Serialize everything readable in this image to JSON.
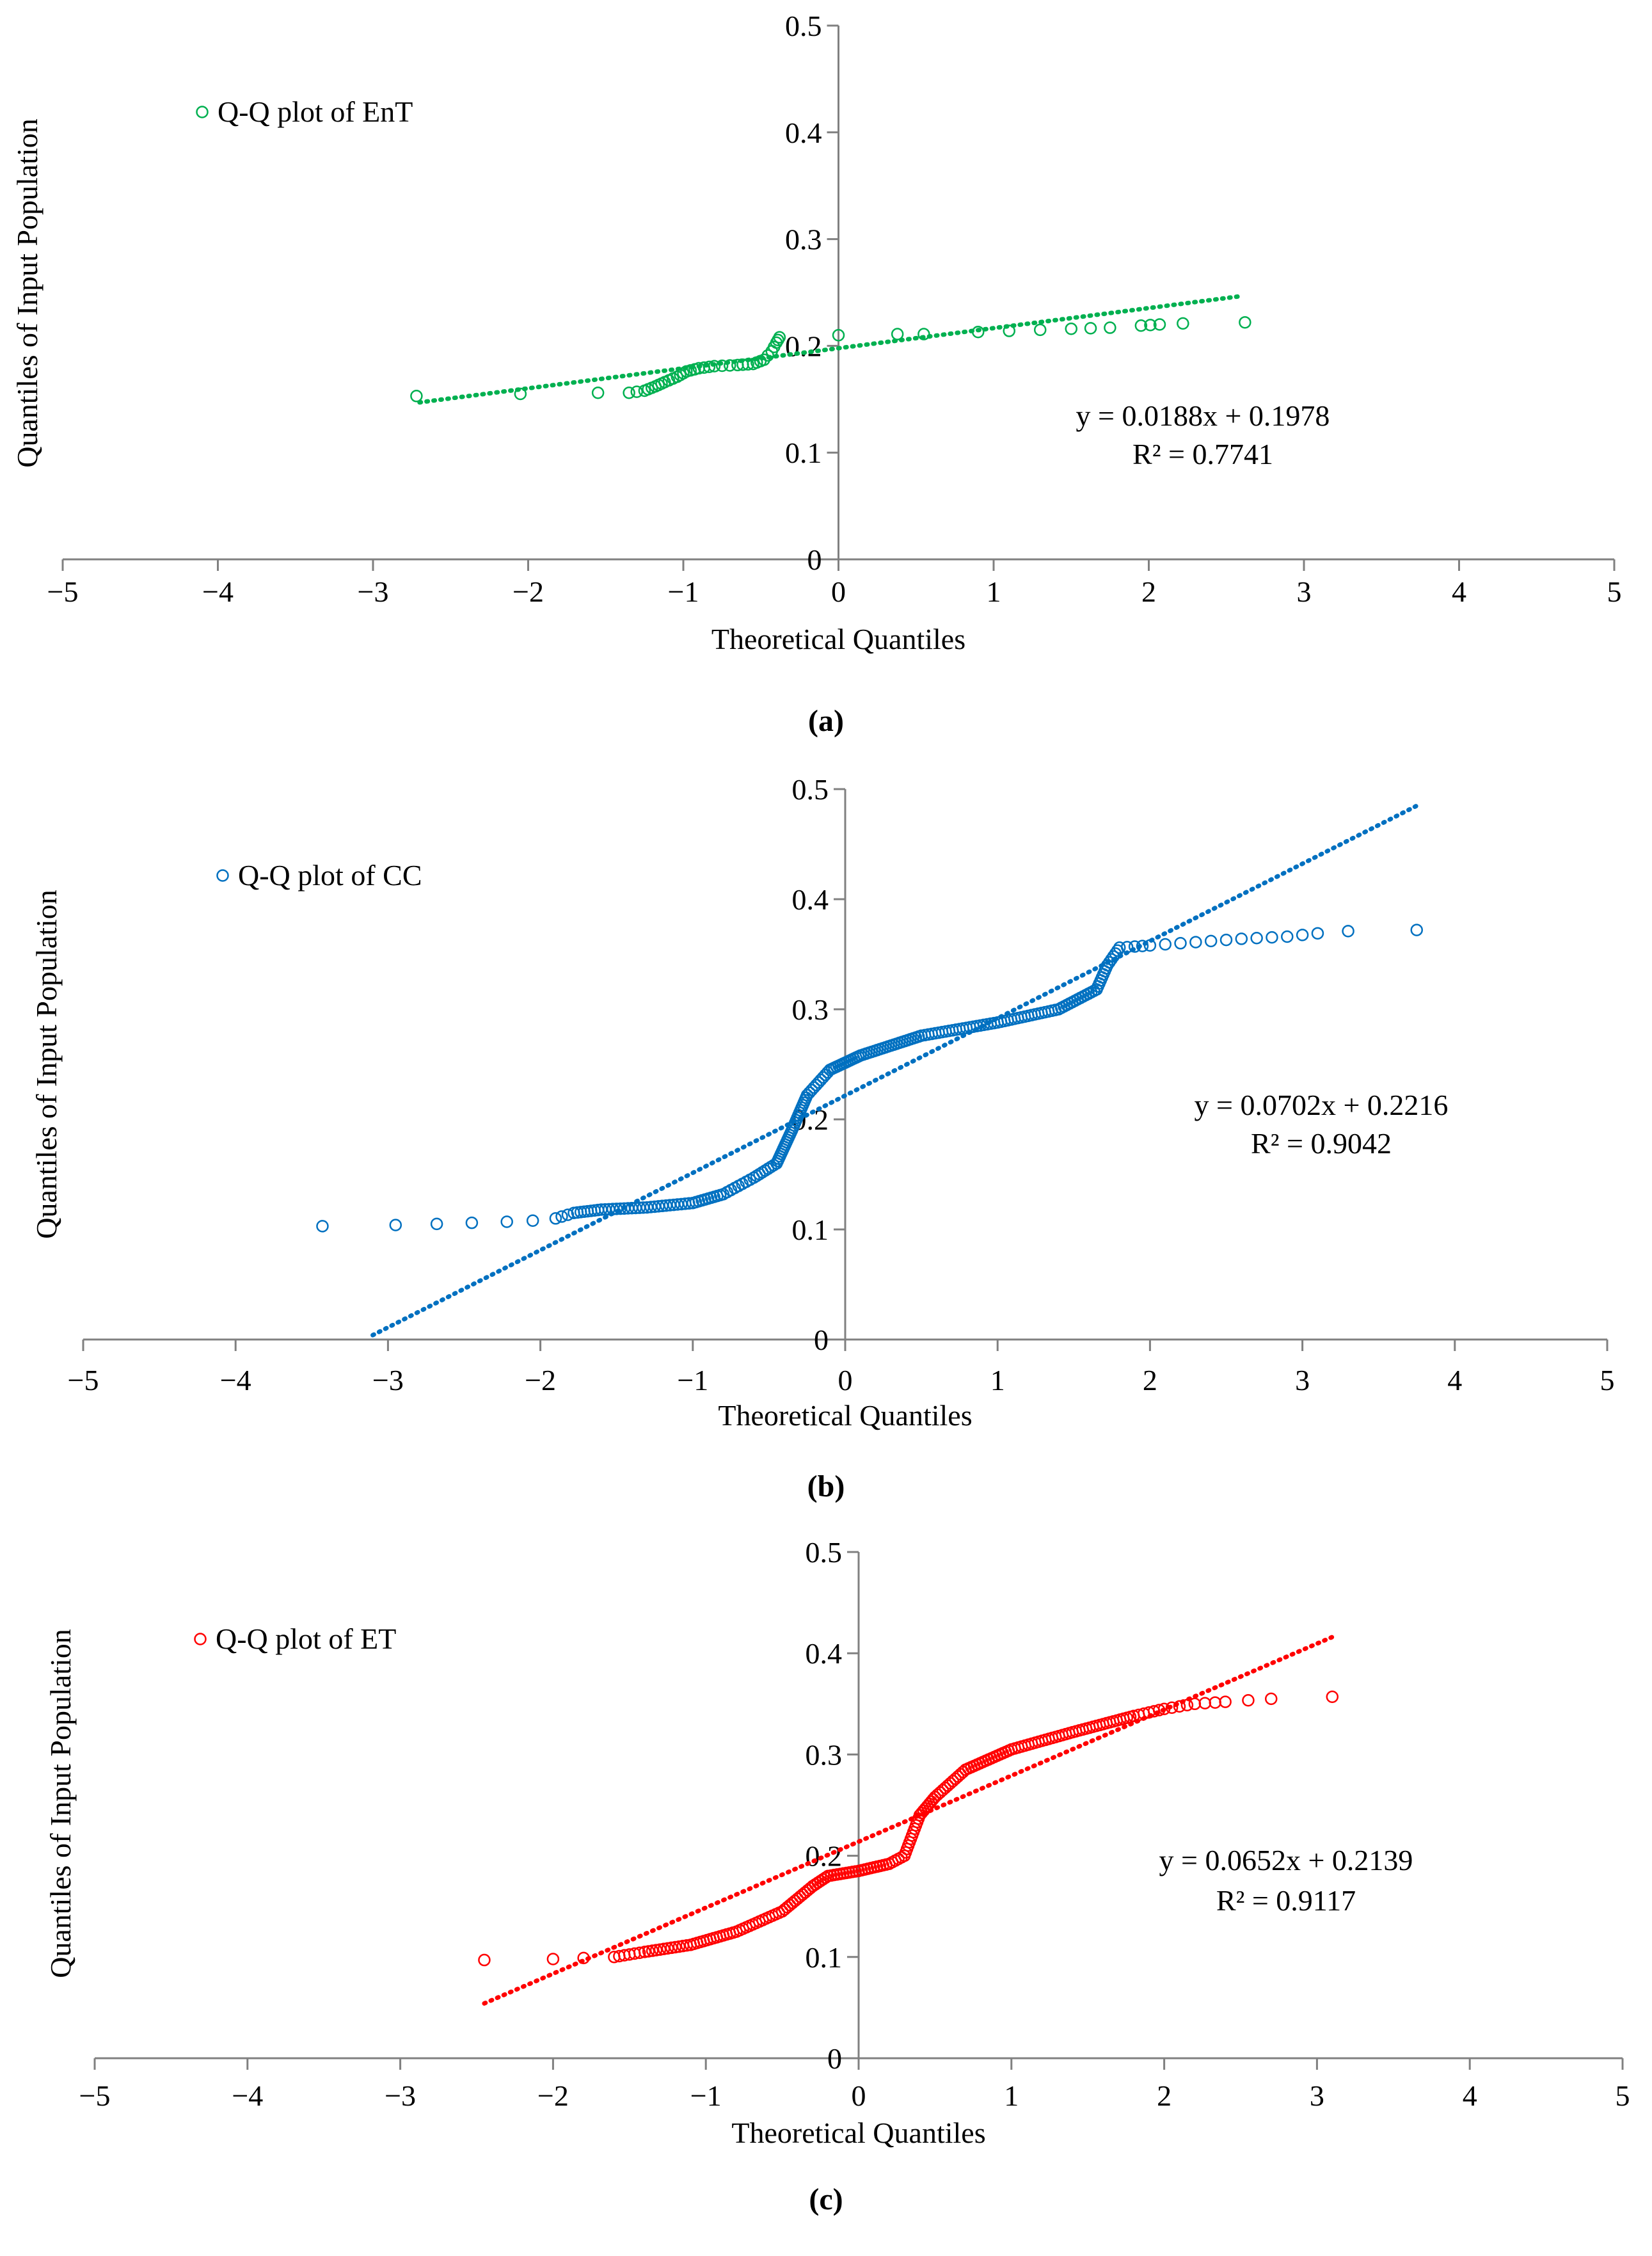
{
  "chart_data": [
    {
      "type": "scatter",
      "panel_label": "(a)",
      "legend": "Q-Q plot of EnT",
      "color": "#00B050",
      "xlabel": "Theoretical Quantiles",
      "ylabel": "Quantiles of Input Population",
      "xlim": [
        -5,
        5
      ],
      "ylim": [
        0,
        0.5
      ],
      "xticks": [
        "−5",
        "−4",
        "−3",
        "−2",
        "−1",
        "0",
        "1",
        "2",
        "3",
        "4",
        "5"
      ],
      "yticks": [
        "0",
        "0.1",
        "0.2",
        "0.3",
        "0.4",
        "0.5"
      ],
      "trendline": {
        "slope": 0.0188,
        "intercept": 0.1978,
        "x_range": [
          -2.7,
          2.6
        ]
      },
      "equation": "y = 0.0188x + 0.1978",
      "r2": "R² = 0.7741",
      "knots": [
        [
          -2.72,
          0.153
        ],
        [
          -2.05,
          0.155
        ],
        [
          -1.55,
          0.156
        ],
        [
          -1.35,
          0.156
        ],
        [
          -1.25,
          0.158
        ],
        [
          -1.18,
          0.162
        ],
        [
          -1.12,
          0.166
        ],
        [
          -1.04,
          0.171
        ],
        [
          -0.98,
          0.176
        ],
        [
          -0.9,
          0.179
        ],
        [
          -0.8,
          0.181
        ],
        [
          -0.65,
          0.182
        ],
        [
          -0.55,
          0.183
        ],
        [
          -0.48,
          0.187
        ],
        [
          -0.43,
          0.195
        ],
        [
          -0.4,
          0.203
        ],
        [
          -0.38,
          0.208
        ],
        [
          0.0,
          0.21
        ],
        [
          0.38,
          0.211
        ],
        [
          0.55,
          0.211
        ],
        [
          0.9,
          0.213
        ],
        [
          1.1,
          0.214
        ],
        [
          1.3,
          0.215
        ],
        [
          1.5,
          0.216
        ],
        [
          1.75,
          0.217
        ],
        [
          1.95,
          0.219
        ],
        [
          2.07,
          0.22
        ],
        [
          2.22,
          0.221
        ],
        [
          2.62,
          0.222
        ]
      ],
      "points_per_segment": [
        1,
        1,
        1,
        2,
        3,
        3,
        3,
        3,
        3,
        3,
        3,
        3,
        3,
        2,
        2,
        2,
        1,
        1,
        1,
        1,
        1,
        1,
        1,
        2,
        1,
        2,
        1,
        1
      ]
    },
    {
      "type": "scatter",
      "panel_label": "(b)",
      "legend": "Q-Q plot of CC",
      "color": "#0070C0",
      "xlabel": "Theoretical Quantiles",
      "ylabel": "Quantiles of Input Population",
      "xlim": [
        -5,
        5
      ],
      "ylim": [
        0,
        0.5
      ],
      "xticks": [
        "−5",
        "−4",
        "−3",
        "−2",
        "−1",
        "0",
        "1",
        "2",
        "3",
        "4",
        "5"
      ],
      "yticks": [
        "0",
        "0.1",
        "0.2",
        "0.3",
        "0.4",
        "0.5"
      ],
      "trendline": {
        "slope": 0.0702,
        "intercept": 0.2216,
        "x_range": [
          -3.1,
          3.75
        ]
      },
      "equation": "y = 0.0702x + 0.2216",
      "r2": "R² = 0.9042",
      "knots": [
        [
          -3.43,
          0.103
        ],
        [
          -2.95,
          0.104
        ],
        [
          -2.68,
          0.105
        ],
        [
          -2.45,
          0.106
        ],
        [
          -2.22,
          0.107
        ],
        [
          -2.05,
          0.108
        ],
        [
          -1.9,
          0.11
        ],
        [
          -1.78,
          0.115
        ],
        [
          -1.6,
          0.118
        ],
        [
          -1.3,
          0.12
        ],
        [
          -1.0,
          0.124
        ],
        [
          -0.8,
          0.132
        ],
        [
          -0.6,
          0.147
        ],
        [
          -0.45,
          0.16
        ],
        [
          -0.35,
          0.19
        ],
        [
          -0.25,
          0.222
        ],
        [
          -0.1,
          0.245
        ],
        [
          0.1,
          0.258
        ],
        [
          0.5,
          0.276
        ],
        [
          1.0,
          0.288
        ],
        [
          1.4,
          0.3
        ],
        [
          1.65,
          0.318
        ],
        [
          1.72,
          0.34
        ],
        [
          1.8,
          0.356
        ],
        [
          2.0,
          0.358
        ],
        [
          2.3,
          0.361
        ],
        [
          2.6,
          0.364
        ],
        [
          2.9,
          0.366
        ],
        [
          3.1,
          0.369
        ],
        [
          3.3,
          0.371
        ],
        [
          3.75,
          0.372
        ]
      ],
      "points_per_segment": [
        1,
        1,
        1,
        1,
        1,
        1,
        3,
        8,
        12,
        12,
        10,
        8,
        8,
        14,
        14,
        10,
        14,
        22,
        22,
        18,
        14,
        8,
        6,
        4,
        3,
        3,
        3,
        2,
        1,
        1
      ]
    },
    {
      "type": "scatter",
      "panel_label": "(c)",
      "legend": "Q-Q plot of ET",
      "color": "#FF0000",
      "xlabel": "Theoretical Quantiles",
      "ylabel": "Quantiles of Input Population",
      "xlim": [
        -5,
        5
      ],
      "ylim": [
        0,
        0.5
      ],
      "xticks": [
        "−5",
        "−4",
        "−3",
        "−2",
        "−1",
        "0",
        "1",
        "2",
        "3",
        "4",
        "5"
      ],
      "yticks": [
        "0",
        "0.1",
        "0.2",
        "0.3",
        "0.4",
        "0.5"
      ],
      "trendline": {
        "slope": 0.0652,
        "intercept": 0.2139,
        "x_range": [
          -2.45,
          3.1
        ]
      },
      "equation": "y = 0.0652x + 0.2139",
      "r2": "R² = 0.9117",
      "knots": [
        [
          -2.45,
          0.097
        ],
        [
          -2.0,
          0.098
        ],
        [
          -1.8,
          0.099
        ],
        [
          -1.6,
          0.1
        ],
        [
          -1.4,
          0.105
        ],
        [
          -1.1,
          0.112
        ],
        [
          -0.8,
          0.125
        ],
        [
          -0.5,
          0.145
        ],
        [
          -0.3,
          0.17
        ],
        [
          -0.2,
          0.18
        ],
        [
          0.0,
          0.185
        ],
        [
          0.2,
          0.192
        ],
        [
          0.3,
          0.2
        ],
        [
          0.4,
          0.24
        ],
        [
          0.5,
          0.258
        ],
        [
          0.7,
          0.285
        ],
        [
          1.0,
          0.305
        ],
        [
          1.4,
          0.322
        ],
        [
          1.8,
          0.338
        ],
        [
          2.0,
          0.345
        ],
        [
          2.2,
          0.35
        ],
        [
          2.4,
          0.352
        ],
        [
          2.7,
          0.355
        ],
        [
          3.1,
          0.357
        ]
      ],
      "points_per_segment": [
        1,
        1,
        1,
        6,
        12,
        14,
        14,
        12,
        6,
        10,
        10,
        5,
        12,
        8,
        12,
        16,
        18,
        18,
        6,
        4,
        3,
        2,
        1
      ]
    }
  ]
}
